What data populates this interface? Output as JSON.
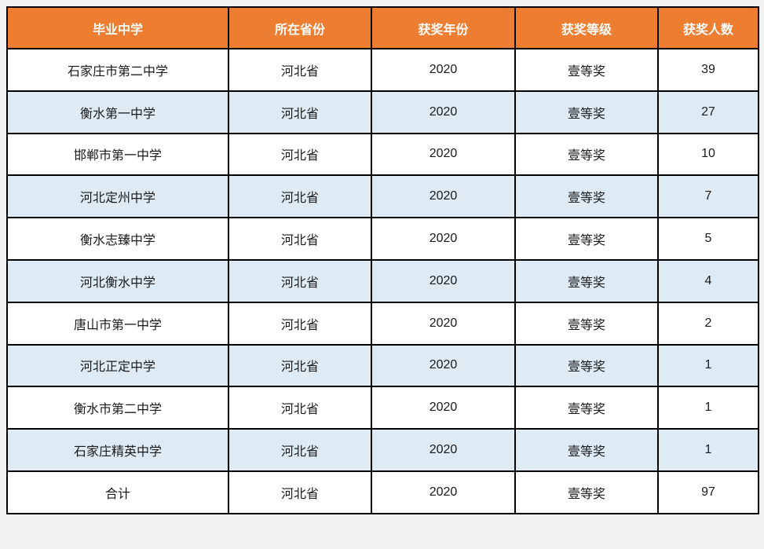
{
  "chart_data": {
    "type": "table",
    "title": "",
    "columns": [
      "毕业中学",
      "所在省份",
      "获奖年份",
      "获奖等级",
      "获奖人数"
    ],
    "rows": [
      [
        "石家庄市第二中学",
        "河北省",
        "2020",
        "壹等奖",
        "39"
      ],
      [
        "衡水第一中学",
        "河北省",
        "2020",
        "壹等奖",
        "27"
      ],
      [
        "邯郸市第一中学",
        "河北省",
        "2020",
        "壹等奖",
        "10"
      ],
      [
        "河北定州中学",
        "河北省",
        "2020",
        "壹等奖",
        "7"
      ],
      [
        "衡水志臻中学",
        "河北省",
        "2020",
        "壹等奖",
        "5"
      ],
      [
        "河北衡水中学",
        "河北省",
        "2020",
        "壹等奖",
        "4"
      ],
      [
        "唐山市第一中学",
        "河北省",
        "2020",
        "壹等奖",
        "2"
      ],
      [
        "河北正定中学",
        "河北省",
        "2020",
        "壹等奖",
        "1"
      ],
      [
        "衡水市第二中学",
        "河北省",
        "2020",
        "壹等奖",
        "1"
      ],
      [
        "石家庄精英中学",
        "河北省",
        "2020",
        "壹等奖",
        "1"
      ],
      [
        "合计",
        "河北省",
        "2020",
        "壹等奖",
        "97"
      ]
    ],
    "total_row_label": "合计",
    "total_value": "97",
    "layout_hints": {
      "striping": "alternate rows light blue starting with second data row",
      "header_position": "top",
      "grid_on": true
    }
  },
  "colors": {
    "header_bg": "#ED7D31",
    "header_text": "#FFFFFF",
    "stripe_row_bg": "#DEEBF5",
    "plain_row_bg": "#FFFFFF",
    "border": "#000000",
    "page_bg": "#F1F1F1",
    "cell_text": "#1A1A1A"
  }
}
